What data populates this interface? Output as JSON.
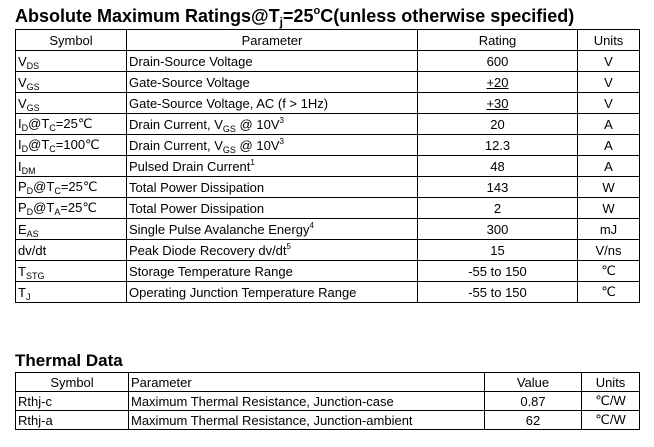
{
  "title": {
    "prefix": "Absolute Maximum Ratings@T",
    "sub": "j",
    "mid": "=25",
    "sup": "o",
    "suffix": "C(unless otherwise specified)"
  },
  "ratings": {
    "headers": [
      "Symbol",
      "Parameter",
      "Rating",
      "Units"
    ],
    "rows": [
      {
        "sym": "V",
        "sym_sub": "DS",
        "sym_rest": "",
        "sym_sub2": "",
        "sym_tail": "",
        "param": "Drain-Source Voltage",
        "param_sub": "",
        "param_rest": "",
        "param_sup": "",
        "rating": "600",
        "units": "V"
      },
      {
        "sym": "V",
        "sym_sub": "GS",
        "sym_rest": "",
        "sym_sub2": "",
        "sym_tail": "",
        "param": "Gate-Source Voltage",
        "param_sub": "",
        "param_rest": "",
        "param_sup": "",
        "rating": "+20",
        "units": "V"
      },
      {
        "sym": "V",
        "sym_sub": "GS",
        "sym_rest": "",
        "sym_sub2": "",
        "sym_tail": "",
        "param": "Gate-Source Voltage, AC (f > 1Hz)",
        "param_sub": "",
        "param_rest": "",
        "param_sup": "",
        "rating": "+30",
        "units": "V"
      },
      {
        "sym": "I",
        "sym_sub": "D",
        "sym_rest": "@T",
        "sym_sub2": "C",
        "sym_tail": "=25℃",
        "param": "Drain Current, V",
        "param_sub": "GS",
        "param_rest": " @ 10V",
        "param_sup": "3",
        "rating": "20",
        "units": "A"
      },
      {
        "sym": "I",
        "sym_sub": "D",
        "sym_rest": "@T",
        "sym_sub2": "C",
        "sym_tail": "=100℃",
        "param": "Drain Current, V",
        "param_sub": "GS",
        "param_rest": " @ 10V",
        "param_sup": "3",
        "rating": "12.3",
        "units": "A"
      },
      {
        "sym": "I",
        "sym_sub": "DM",
        "sym_rest": "",
        "sym_sub2": "",
        "sym_tail": "",
        "param": "Pulsed Drain Current",
        "param_sub": "",
        "param_rest": "",
        "param_sup": "1",
        "rating": "48",
        "units": "A"
      },
      {
        "sym": "P",
        "sym_sub": "D",
        "sym_rest": "@T",
        "sym_sub2": "C",
        "sym_tail": "=25℃",
        "param": "Total Power Dissipation",
        "param_sub": "",
        "param_rest": "",
        "param_sup": "",
        "rating": "143",
        "units": "W"
      },
      {
        "sym": "P",
        "sym_sub": "D",
        "sym_rest": "@T",
        "sym_sub2": "A",
        "sym_tail": "=25℃",
        "param": "Total Power Dissipation",
        "param_sub": "",
        "param_rest": "",
        "param_sup": "",
        "rating": "2",
        "units": "W"
      },
      {
        "sym": "E",
        "sym_sub": "AS",
        "sym_rest": "",
        "sym_sub2": "",
        "sym_tail": "",
        "param": "Single Pulse Avalanche Energy",
        "param_sub": "",
        "param_rest": "",
        "param_sup": "4",
        "rating": "300",
        "units": "mJ"
      },
      {
        "sym": "dv/dt",
        "sym_sub": "",
        "sym_rest": "",
        "sym_sub2": "",
        "sym_tail": "",
        "param": "Peak Diode Recovery dv/dt",
        "param_sub": "",
        "param_rest": "",
        "param_sup": "5",
        "rating": "15",
        "units": "V/ns"
      },
      {
        "sym": "T",
        "sym_sub": "STG",
        "sym_rest": "",
        "sym_sub2": "",
        "sym_tail": "",
        "param": "Storage Temperature Range",
        "param_sub": "",
        "param_rest": "",
        "param_sup": "",
        "rating": "-55 to 150",
        "units": "℃"
      },
      {
        "sym": "T",
        "sym_sub": "J",
        "sym_rest": "",
        "sym_sub2": "",
        "sym_tail": "",
        "param": "Operating Junction Temperature Range",
        "param_sub": "",
        "param_rest": "",
        "param_sup": "",
        "rating": "-55 to 150",
        "units": "℃"
      }
    ]
  },
  "thermal": {
    "title": "Thermal Data",
    "headers": [
      "Symbol",
      "Parameter",
      "Value",
      "Units"
    ],
    "rows": [
      {
        "sym": "Rthj-c",
        "param": "Maximum Thermal Resistance, Junction-case",
        "value": "0.87",
        "units": "℃/W"
      },
      {
        "sym": "Rthj-a",
        "param": "Maximum Thermal Resistance, Junction-ambient",
        "value": "62",
        "units": "℃/W"
      }
    ]
  }
}
